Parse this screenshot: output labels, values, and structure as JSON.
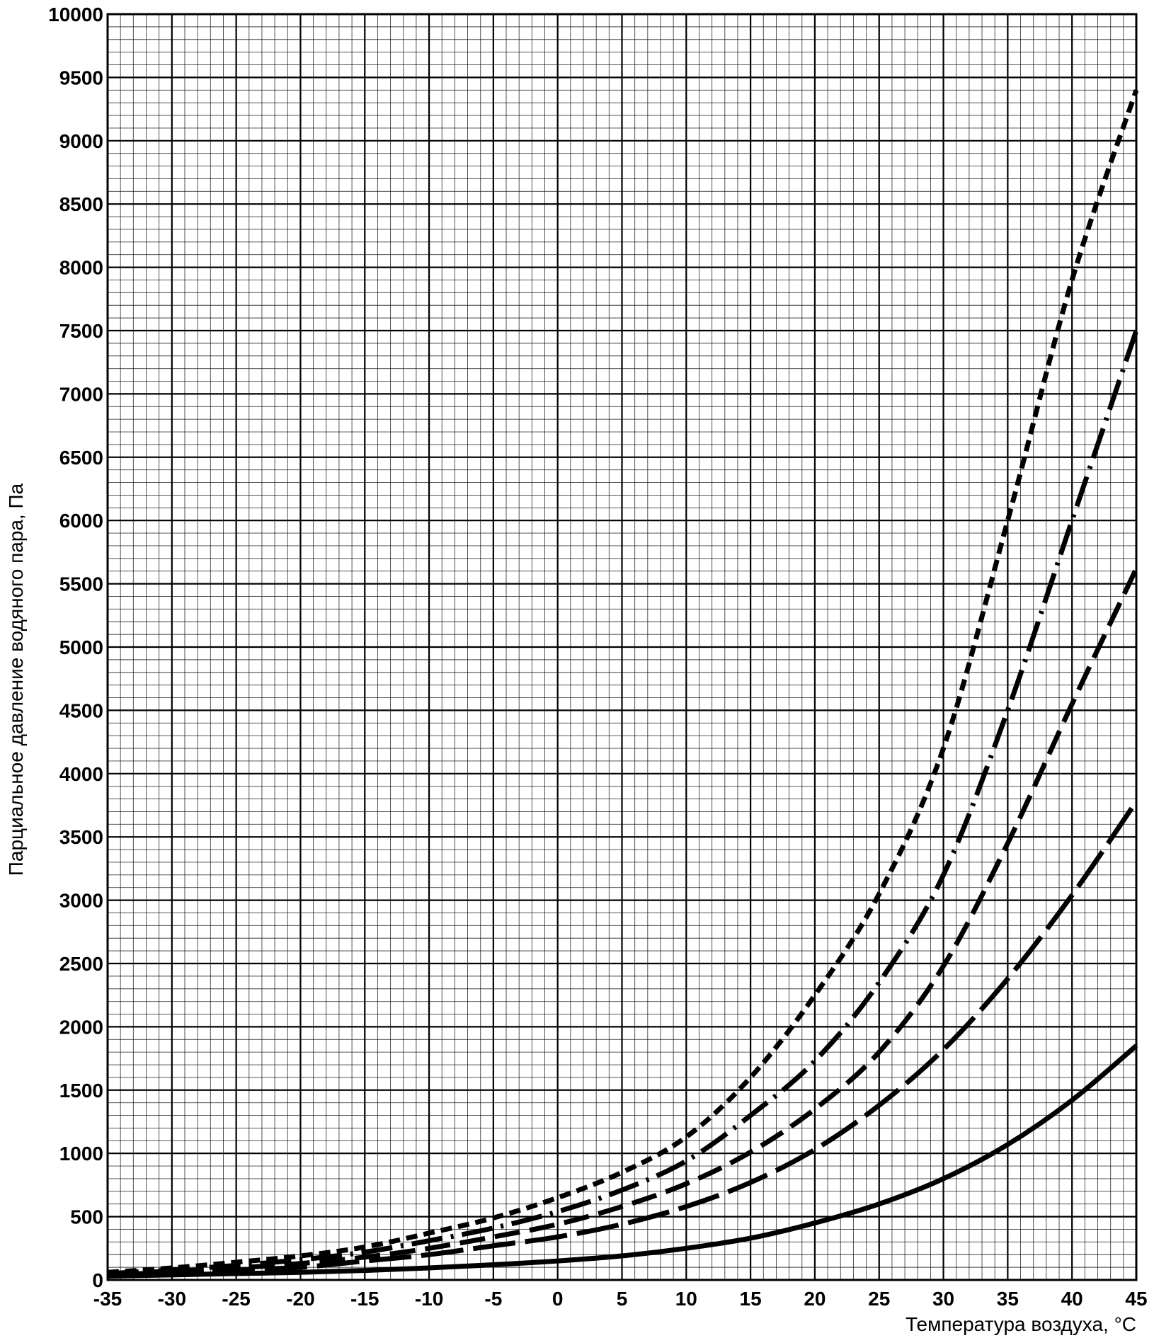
{
  "chart_data": {
    "type": "line",
    "title": "",
    "xlabel": "Температура воздуха, °С",
    "ylabel": "Парциальное давление водяного пара, Па",
    "xlim": [
      -35,
      45
    ],
    "ylim": [
      0,
      10000
    ],
    "xticks": [
      -35,
      -30,
      -25,
      -20,
      -15,
      -10,
      -5,
      0,
      5,
      10,
      15,
      20,
      25,
      30,
      35,
      40,
      45
    ],
    "xtick_labels": [
      "-35",
      "-30",
      "-25",
      "-20",
      "-15",
      "-10",
      "-5",
      "0",
      "5",
      "10",
      "15",
      "20",
      "25",
      "30",
      "35",
      "40",
      "45"
    ],
    "yticks": [
      0,
      500,
      1000,
      1500,
      2000,
      2500,
      3000,
      3500,
      4000,
      4500,
      5000,
      5500,
      6000,
      6500,
      7000,
      7500,
      8000,
      8500,
      9000,
      9500,
      10000
    ],
    "ytick_labels": [
      "0",
      "500",
      "1000",
      "1500",
      "2000",
      "2500",
      "3000",
      "3500",
      "4000",
      "4500",
      "5000",
      "5500",
      "6000",
      "6500",
      "7000",
      "7500",
      "8000",
      "8500",
      "9000",
      "9500",
      "10000"
    ],
    "grid": true,
    "legend": "none",
    "x": [
      -35,
      -30,
      -25,
      -20,
      -15,
      -10,
      -5,
      0,
      5,
      10,
      15,
      20,
      25,
      30,
      35,
      40,
      45
    ],
    "series": [
      {
        "style": "solid",
        "values": [
          30,
          40,
          50,
          60,
          75,
          95,
          120,
          150,
          190,
          250,
          330,
          450,
          600,
          800,
          1070,
          1420,
          1850
        ]
      },
      {
        "style": "long-dash",
        "values": [
          40,
          60,
          80,
          100,
          150,
          200,
          270,
          340,
          440,
          580,
          770,
          1030,
          1380,
          1820,
          2380,
          3040,
          3780
        ]
      },
      {
        "style": "dash",
        "values": [
          45,
          70,
          95,
          130,
          180,
          250,
          340,
          440,
          580,
          760,
          1010,
          1350,
          1800,
          2480,
          3450,
          4550,
          5620
        ]
      },
      {
        "style": "dash-dot",
        "values": [
          50,
          80,
          115,
          160,
          220,
          310,
          410,
          540,
          710,
          940,
          1300,
          1730,
          2350,
          3200,
          4500,
          6000,
          7500
        ]
      },
      {
        "style": "short-dash",
        "values": [
          60,
          95,
          140,
          190,
          260,
          370,
          490,
          650,
          850,
          1130,
          1600,
          2250,
          3050,
          4200,
          6000,
          7900,
          9400
        ]
      }
    ]
  }
}
